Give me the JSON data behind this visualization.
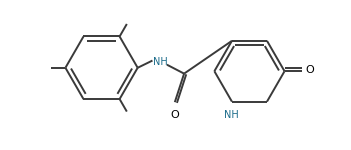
{
  "background_color": "#ffffff",
  "line_color": "#3a3a3a",
  "atom_label_color": "#000000",
  "nh_color": "#1a6b8a",
  "line_width": 1.4,
  "figsize": [
    3.51,
    1.5
  ],
  "dpi": 100,
  "xlim": [
    0,
    10
  ],
  "ylim": [
    0,
    4.28
  ]
}
